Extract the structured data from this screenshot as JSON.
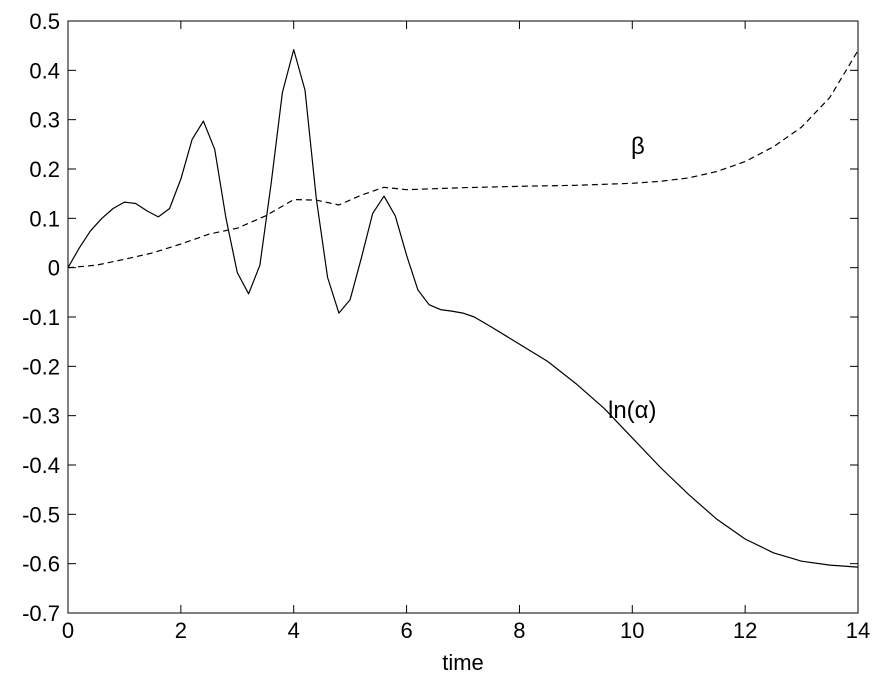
{
  "chart_data": {
    "type": "line",
    "title": "",
    "xlabel": "time",
    "ylabel": "",
    "xlim": [
      0,
      14
    ],
    "ylim": [
      -0.7,
      0.5
    ],
    "xticks": [
      0,
      2,
      4,
      6,
      8,
      10,
      12,
      14
    ],
    "yticks": [
      -0.7,
      -0.6,
      -0.5,
      -0.4,
      -0.3,
      -0.2,
      -0.1,
      0,
      0.1,
      0.2,
      0.3,
      0.4,
      0.5
    ],
    "xtick_labels": [
      "0",
      "2",
      "4",
      "6",
      "8",
      "10",
      "12",
      "14"
    ],
    "ytick_labels": [
      "-0.7",
      "-0.6",
      "-0.5",
      "-0.4",
      "-0.3",
      "-0.2",
      "-0.1",
      "0",
      "0.1",
      "0.2",
      "0.3",
      "0.4",
      "0.5"
    ],
    "grid": false,
    "legend": "none",
    "series": [
      {
        "name": "ln(α)",
        "style": "solid",
        "color": "#000000",
        "x": [
          0,
          0.2,
          0.4,
          0.6,
          0.8,
          1.0,
          1.2,
          1.4,
          1.6,
          1.8,
          2.0,
          2.2,
          2.4,
          2.6,
          2.8,
          3.0,
          3.2,
          3.4,
          3.6,
          3.8,
          4.0,
          4.2,
          4.4,
          4.6,
          4.8,
          5.0,
          5.2,
          5.4,
          5.6,
          5.8,
          6.0,
          6.2,
          6.4,
          6.6,
          6.8,
          7.0,
          7.2,
          7.5,
          8.0,
          8.5,
          9.0,
          9.5,
          10.0,
          10.5,
          11.0,
          11.5,
          12.0,
          12.5,
          13.0,
          13.5,
          14.0
        ],
        "y": [
          0.0,
          0.04,
          0.075,
          0.1,
          0.12,
          0.133,
          0.13,
          0.115,
          0.103,
          0.12,
          0.18,
          0.26,
          0.297,
          0.24,
          0.1,
          -0.01,
          -0.053,
          0.005,
          0.17,
          0.355,
          0.442,
          0.36,
          0.14,
          -0.02,
          -0.092,
          -0.065,
          0.02,
          0.11,
          0.145,
          0.105,
          0.025,
          -0.045,
          -0.075,
          -0.085,
          -0.088,
          -0.092,
          -0.1,
          -0.12,
          -0.155,
          -0.19,
          -0.235,
          -0.285,
          -0.345,
          -0.405,
          -0.46,
          -0.51,
          -0.55,
          -0.578,
          -0.595,
          -0.603,
          -0.607
        ]
      },
      {
        "name": "β",
        "style": "dashed",
        "color": "#000000",
        "x": [
          0,
          0.5,
          1.0,
          1.5,
          2.0,
          2.5,
          3.0,
          3.5,
          4.0,
          4.4,
          4.8,
          5.2,
          5.6,
          6.0,
          6.5,
          7.0,
          8.0,
          9.0,
          10.0,
          10.5,
          11.0,
          11.5,
          12.0,
          12.5,
          13.0,
          13.5,
          14.0
        ],
        "y": [
          0.0,
          0.005,
          0.017,
          0.03,
          0.048,
          0.068,
          0.08,
          0.105,
          0.138,
          0.137,
          0.127,
          0.147,
          0.163,
          0.158,
          0.16,
          0.162,
          0.165,
          0.167,
          0.171,
          0.175,
          0.182,
          0.195,
          0.215,
          0.245,
          0.285,
          0.345,
          0.44
        ]
      }
    ],
    "annotations": [
      {
        "text": "β",
        "x": 10.1,
        "y": 0.23
      },
      {
        "text": "ln(α)",
        "x": 10.0,
        "y": -0.305
      }
    ]
  }
}
